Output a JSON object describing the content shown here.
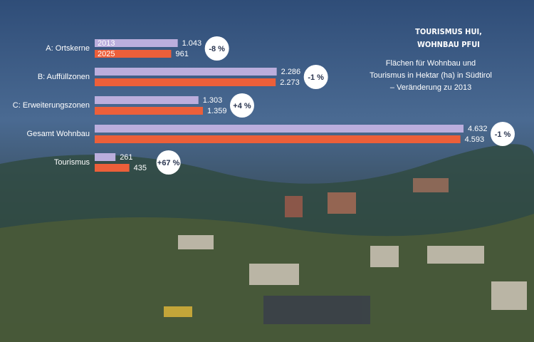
{
  "chart_data": {
    "type": "hbar",
    "title": [
      "TOURISMUS HUI,",
      "WOHNBAU PFUI"
    ],
    "subtitle": [
      "Flächen für Wohnbau und",
      "Tourismus in Hektar (ha) in Südtirol",
      "– Veränderung zu 2013"
    ],
    "categories": [
      "A: Ortskerne",
      "B: Auffüllzonen",
      "C: Erweiterungszonen",
      "Gesamt Wohnbau",
      "Tourismus"
    ],
    "series": [
      {
        "name": "2013",
        "color": "#bbaedd",
        "values": [
          1043,
          2286,
          1303,
          4632,
          261
        ],
        "value_labels": [
          "1.043",
          "2.286",
          "1.303",
          "4.632",
          "261"
        ]
      },
      {
        "name": "2025",
        "color": "#ec5f3a",
        "values": [
          961,
          2273,
          1359,
          4593,
          435
        ],
        "value_labels": [
          "961",
          "2.273",
          "1.359",
          "4.593",
          "435"
        ]
      }
    ],
    "changes": {
      "values": [
        -8,
        -1,
        4,
        -1,
        67
      ],
      "value_labels": [
        "-8 %",
        "-1 %",
        "+4 %",
        "-1 %",
        "+67 %"
      ]
    }
  }
}
